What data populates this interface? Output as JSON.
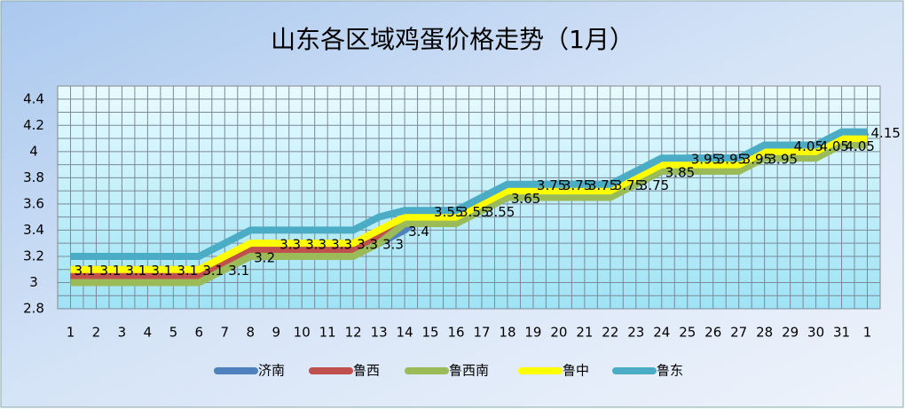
{
  "chart_data": {
    "type": "line",
    "title": "山东各区域鸡蛋价格走势（1月）",
    "categories": [
      "1",
      "2",
      "3",
      "4",
      "5",
      "6",
      "7",
      "8",
      "9",
      "10",
      "11",
      "12",
      "13",
      "14",
      "15",
      "16",
      "17",
      "18",
      "19",
      "20",
      "21",
      "22",
      "23",
      "24",
      "25",
      "26",
      "27",
      "28",
      "29",
      "30",
      "31",
      "1"
    ],
    "series": [
      {
        "name": "济南",
        "color": "#4f81bd",
        "values": [
          3.1,
          3.1,
          3.1,
          3.1,
          3.1,
          3.1,
          3.1,
          3.2,
          3.3,
          3.3,
          3.3,
          3.3,
          3.3,
          3.4,
          3.55,
          3.55,
          3.55,
          3.65,
          3.75,
          3.75,
          3.75,
          3.75,
          3.75,
          3.85,
          3.95,
          3.95,
          3.95,
          3.95,
          4.05,
          4.05,
          4.05,
          4.15
        ]
      },
      {
        "name": "鲁西",
        "color": "#c0504d",
        "values": [
          3.05,
          3.05,
          3.05,
          3.05,
          3.05,
          3.05,
          3.15,
          3.25,
          3.25,
          3.25,
          3.25,
          3.25,
          3.35,
          3.5,
          3.5,
          3.5,
          3.6,
          3.7,
          3.7,
          3.7,
          3.7,
          3.7,
          3.8,
          3.9,
          3.9,
          3.9,
          3.9,
          4.0,
          4.0,
          4.0,
          4.1,
          4.1
        ]
      },
      {
        "name": "鲁西南",
        "color": "#9bbb59",
        "values": [
          3.0,
          3.0,
          3.0,
          3.0,
          3.0,
          3.0,
          3.1,
          3.2,
          3.2,
          3.2,
          3.2,
          3.2,
          3.3,
          3.45,
          3.45,
          3.45,
          3.55,
          3.65,
          3.65,
          3.65,
          3.65,
          3.65,
          3.75,
          3.85,
          3.85,
          3.85,
          3.85,
          3.95,
          3.95,
          3.95,
          4.05,
          4.05
        ]
      },
      {
        "name": "鲁中",
        "color": "#ffff00",
        "values": [
          3.1,
          3.1,
          3.1,
          3.1,
          3.1,
          3.1,
          3.2,
          3.3,
          3.3,
          3.3,
          3.3,
          3.3,
          3.4,
          3.5,
          3.5,
          3.5,
          3.6,
          3.7,
          3.7,
          3.7,
          3.7,
          3.7,
          3.8,
          3.9,
          3.9,
          3.9,
          3.9,
          4.0,
          4.0,
          4.0,
          4.1,
          4.1
        ]
      },
      {
        "name": "鲁东",
        "color": "#4bacc6",
        "values": [
          3.2,
          3.2,
          3.2,
          3.2,
          3.2,
          3.2,
          3.3,
          3.4,
          3.4,
          3.4,
          3.4,
          3.4,
          3.5,
          3.55,
          3.55,
          3.55,
          3.65,
          3.75,
          3.75,
          3.75,
          3.75,
          3.75,
          3.85,
          3.95,
          3.95,
          3.95,
          3.95,
          4.05,
          4.05,
          4.05,
          4.15,
          4.15
        ]
      }
    ],
    "labeled_series": 0,
    "ylim": [
      2.8,
      4.5
    ],
    "yticks": [
      2.8,
      3,
      3.2,
      3.4,
      3.6,
      3.8,
      4,
      4.2,
      4.4
    ],
    "grid": true,
    "legend": "bottom"
  }
}
